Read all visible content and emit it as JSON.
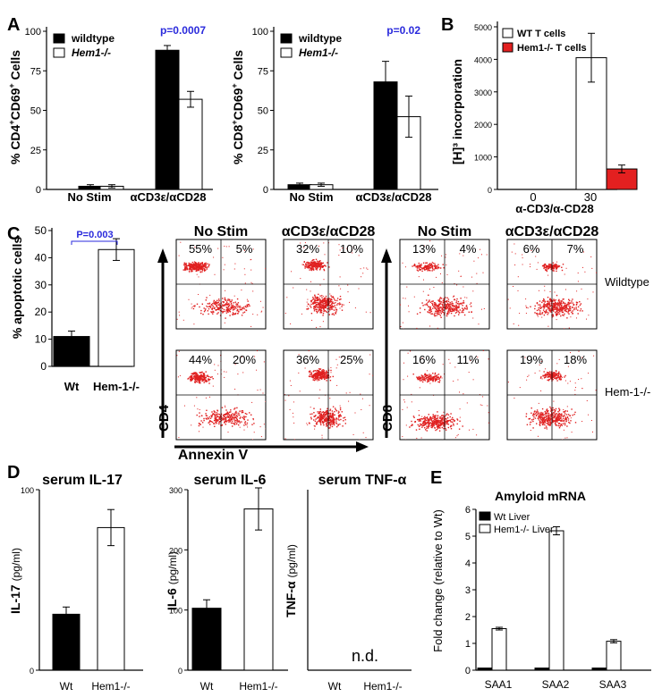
{
  "panel_letters": {
    "A": "A",
    "B": "B",
    "C": "C",
    "D": "D",
    "E": "E"
  },
  "chart_data": [
    {
      "id": "A1",
      "type": "bar",
      "ylabel_main": "% CD4",
      "ylabel_sup1": "+",
      "ylabel_mid": "CD69",
      "ylabel_sup2": "+",
      "ylabel_tail": " Cells",
      "ylim": [
        0,
        100
      ],
      "yticks": [
        "0",
        "25",
        "50",
        "75",
        "100"
      ],
      "categories": [
        "No Stim",
        "αCD3ε/αCD28"
      ],
      "legend": [
        "wildtype",
        "Hem1-/-"
      ],
      "series": [
        {
          "name": "wildtype",
          "color": "#000000",
          "values": [
            2,
            88
          ],
          "errors": [
            1,
            3
          ]
        },
        {
          "name": "Hem1-/-",
          "color": "#ffffff",
          "values": [
            2,
            57
          ],
          "errors": [
            1,
            5
          ]
        }
      ],
      "annotation": "p=0.0007"
    },
    {
      "id": "A2",
      "type": "bar",
      "ylabel_main": "% CD8",
      "ylabel_sup1": "+",
      "ylabel_mid": "CD69",
      "ylabel_sup2": "+",
      "ylabel_tail": " Cells",
      "ylim": [
        0,
        100
      ],
      "yticks": [
        "0",
        "25",
        "50",
        "75",
        "100"
      ],
      "categories": [
        "No Stim",
        "αCD3ε/αCD28"
      ],
      "legend": [
        "wildtype",
        "Hem1-/-"
      ],
      "series": [
        {
          "name": "wildtype",
          "color": "#000000",
          "values": [
            3,
            68
          ],
          "errors": [
            1,
            13
          ]
        },
        {
          "name": "Hem1-/-",
          "color": "#ffffff",
          "values": [
            3,
            46
          ],
          "errors": [
            1,
            13
          ]
        }
      ],
      "annotation": "p=0.02"
    },
    {
      "id": "B",
      "type": "bar",
      "ylabel": "[H]³ incorporation",
      "ylim": [
        0,
        5000
      ],
      "yticks": [
        "0",
        "1000",
        "2000",
        "3000",
        "4000",
        "5000"
      ],
      "categories": [
        "0",
        "30"
      ],
      "xlabel": "α-CD3/α-CD28",
      "legend": [
        "WT T cells",
        "Hem1-/- T cells"
      ],
      "series": [
        {
          "name": "WT T cells",
          "color": "#ffffff",
          "values": [
            0,
            4050
          ],
          "errors": [
            0,
            750
          ]
        },
        {
          "name": "Hem1-/- T cells",
          "color": "#e32020",
          "values": [
            0,
            630
          ],
          "errors": [
            0,
            120
          ]
        }
      ]
    },
    {
      "id": "C",
      "type": "bar",
      "ylabel": "% apoptotic cells",
      "ylim": [
        0,
        50
      ],
      "yticks": [
        "0",
        "10",
        "20",
        "30",
        "40",
        "50"
      ],
      "categories": [
        "Wt",
        "Hem-1-/-"
      ],
      "series": [
        {
          "values": [
            11,
            43
          ],
          "errors": [
            2,
            4
          ],
          "colors": [
            "#000000",
            "#ffffff"
          ]
        }
      ],
      "annotation": "P=0.003"
    },
    {
      "id": "D1",
      "type": "bar",
      "title": "serum IL-17",
      "ylabel": "IL-17",
      "yunit": "(pg/ml)",
      "ylim": [
        0,
        100
      ],
      "yticks": [
        "0",
        "100"
      ],
      "categories": [
        "Wt",
        "Hem1-/-"
      ],
      "series": [
        {
          "values": [
            31,
            79
          ],
          "errors": [
            4,
            10
          ],
          "colors": [
            "#000000",
            "#ffffff"
          ]
        }
      ]
    },
    {
      "id": "D2",
      "type": "bar",
      "title": "serum IL-6",
      "ylabel": "IL-6",
      "yunit": "(pg/ml)",
      "ylim": [
        0,
        300
      ],
      "yticks": [
        "0",
        "100",
        "200",
        "300"
      ],
      "categories": [
        "Wt",
        "Hem1-/-"
      ],
      "series": [
        {
          "values": [
            103,
            268
          ],
          "errors": [
            14,
            35
          ],
          "colors": [
            "#000000",
            "#ffffff"
          ]
        }
      ]
    },
    {
      "id": "D3",
      "type": "bar",
      "title": "serum TNF-α",
      "ylabel": "TNF-α",
      "yunit": "(pg/ml)",
      "categories": [
        "Wt",
        "Hem1-/-"
      ],
      "annotation": "n.d."
    },
    {
      "id": "E",
      "type": "bar",
      "title": "Amyloid mRNA",
      "ylabel": "Fold change (relative to Wt)",
      "ylim": [
        0,
        6
      ],
      "yticks": [
        "0",
        "1",
        "2",
        "3",
        "4",
        "5",
        "6"
      ],
      "categories": [
        "SAA1",
        "SAA2",
        "SAA3"
      ],
      "legend": [
        "Wt Liver",
        "Hem1-/- Liver"
      ],
      "series": [
        {
          "name": "Wt Liver",
          "color": "#000000",
          "values": [
            0.08,
            0.08,
            0.08
          ],
          "errors": [
            0,
            0,
            0
          ]
        },
        {
          "name": "Hem1-/- Liver",
          "color": "#ffffff",
          "values": [
            1.55,
            5.2,
            1.08
          ],
          "errors": [
            0.05,
            0.15,
            0.06
          ]
        }
      ]
    }
  ],
  "flow": {
    "headers": [
      "No Stim",
      "αCD3ε/αCD28",
      "No Stim",
      "αCD3ε/αCD28"
    ],
    "row_labels": [
      "Wildtype",
      "Hem-1-/-"
    ],
    "axis_x": "Annexin V",
    "axis_cd4": "CD4",
    "axis_cd8": "CD8",
    "plots": [
      {
        "ul": "55%",
        "ur": "5%"
      },
      {
        "ul": "32%",
        "ur": "10%"
      },
      {
        "ul": "13%",
        "ur": "4%"
      },
      {
        "ul": "6%",
        "ur": "7%"
      },
      {
        "ul": "44%",
        "ur": "20%"
      },
      {
        "ul": "36%",
        "ur": "25%"
      },
      {
        "ul": "16%",
        "ur": "11%"
      },
      {
        "ul": "19%",
        "ur": "18%"
      }
    ]
  }
}
